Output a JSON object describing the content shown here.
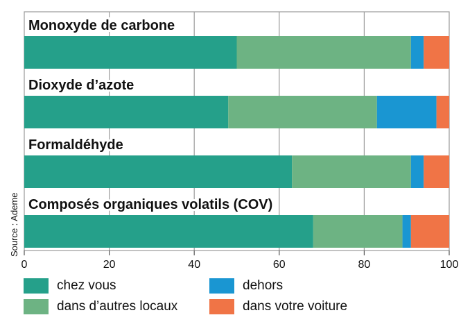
{
  "source": "Source : Ademe",
  "chart_data": {
    "type": "bar",
    "orientation": "horizontal",
    "stacked": true,
    "categories": [
      "Monoxyde de carbone",
      "Dioxyde d’azote",
      "Formaldéhyde",
      "Composés organiques volatils (COV)"
    ],
    "series": [
      {
        "name": "chez vous",
        "color": "#25a08a",
        "values": [
          50,
          48,
          63,
          68
        ]
      },
      {
        "name": "dans d’autres locaux",
        "color": "#6db383",
        "values": [
          41,
          35,
          28,
          21
        ]
      },
      {
        "name": "dehors",
        "color": "#1a96d2",
        "values": [
          3,
          14,
          3,
          2
        ]
      },
      {
        "name": "dans votre voiture",
        "color": "#f07446",
        "values": [
          6,
          3,
          6,
          9
        ]
      }
    ],
    "xlim": [
      0,
      100
    ],
    "xticks": [
      "0",
      "20",
      "40",
      "60",
      "80",
      "100"
    ],
    "grid": true,
    "legend_placement": "bottom"
  }
}
